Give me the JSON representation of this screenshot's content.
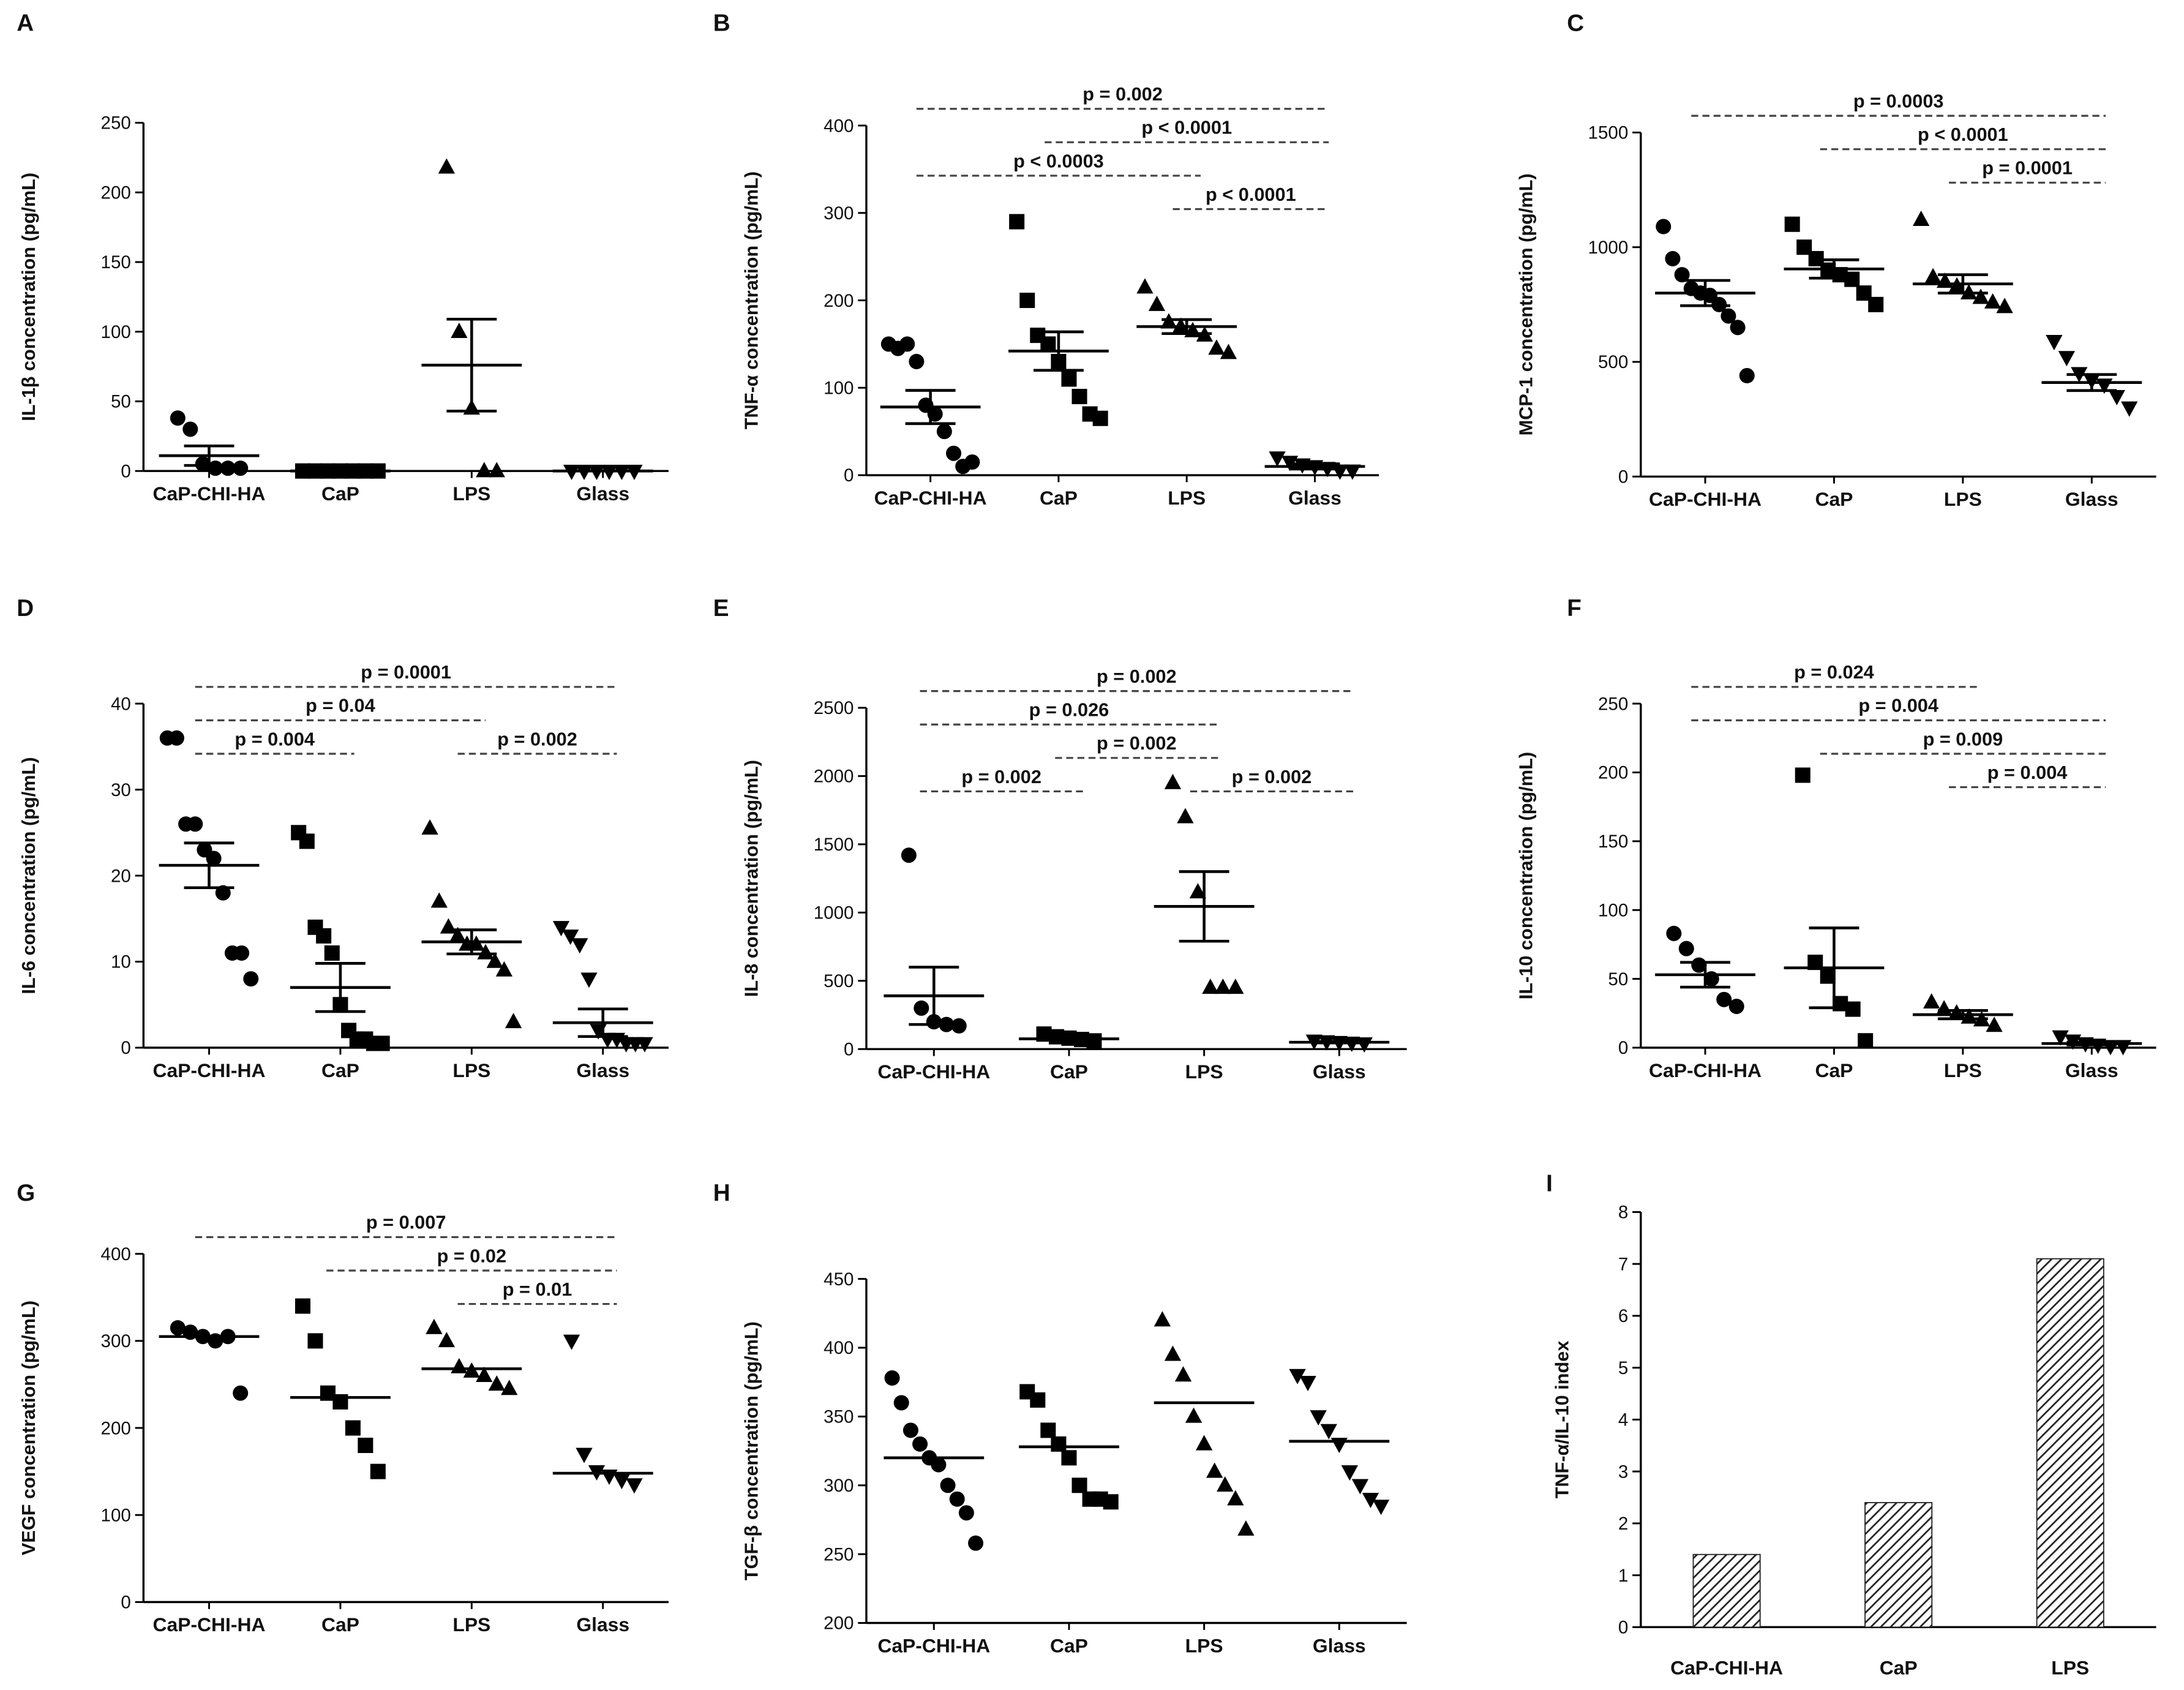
{
  "chart_data": [
    {
      "type": "strip",
      "panel": "A",
      "ylabel": "IL-1β concentration (pg/mL)",
      "categories": [
        "CaP-CHI-HA",
        "CaP",
        "LPS",
        "Glass"
      ],
      "ylim": [
        0,
        250
      ],
      "yticks": [
        0,
        50,
        100,
        150,
        200,
        250
      ],
      "groups": [
        {
          "points": [
            38,
            30,
            5,
            2,
            2,
            2
          ],
          "mean": 11,
          "sem": 7
        },
        {
          "points": [
            0,
            0,
            0,
            0,
            0,
            0,
            0
          ],
          "mean": 0,
          "sem": 0
        },
        {
          "points": [
            218,
            100,
            45,
            0,
            0
          ],
          "mean": 76,
          "sem": 33
        },
        {
          "points": [
            0,
            0,
            0,
            0,
            0,
            0
          ],
          "mean": 0,
          "sem": 0
        }
      ],
      "annotations": []
    },
    {
      "type": "strip",
      "panel": "B",
      "ylabel": "TNF-α concentration (pg/mL)",
      "categories": [
        "CaP-CHI-HA",
        "CaP",
        "LPS",
        "Glass"
      ],
      "ylim": [
        0,
        400
      ],
      "yticks": [
        0,
        100,
        200,
        300,
        400
      ],
      "groups": [
        {
          "points": [
            150,
            145,
            150,
            130,
            80,
            70,
            50,
            25,
            10,
            15
          ],
          "mean": 78,
          "sem": 19
        },
        {
          "points": [
            290,
            200,
            160,
            150,
            130,
            110,
            90,
            70,
            65
          ],
          "mean": 142,
          "sem": 22
        },
        {
          "points": [
            215,
            195,
            175,
            170,
            165,
            160,
            145,
            140
          ],
          "mean": 170,
          "sem": 8
        },
        {
          "points": [
            20,
            15,
            12,
            10,
            8,
            5,
            5
          ],
          "mean": 10,
          "sem": 3
        }
      ],
      "annotations": [
        {
          "text": "p = 0.002",
          "between": [
            0,
            3
          ]
        },
        {
          "text": "p < 0.0001",
          "between": [
            1,
            3
          ]
        },
        {
          "text": "p < 0.0003",
          "between": [
            0,
            2
          ]
        },
        {
          "text": "p < 0.0001",
          "between": [
            2,
            3
          ]
        }
      ]
    },
    {
      "type": "strip",
      "panel": "C",
      "ylabel": "MCP-1 concentration (pg/mL)",
      "categories": [
        "CaP-CHI-HA",
        "CaP",
        "LPS",
        "Glass"
      ],
      "ylim": [
        0,
        1500
      ],
      "yticks": [
        0,
        500,
        1000,
        1500
      ],
      "groups": [
        {
          "points": [
            1090,
            950,
            880,
            820,
            800,
            790,
            750,
            700,
            650,
            440
          ],
          "mean": 800,
          "sem": 55
        },
        {
          "points": [
            1100,
            1000,
            950,
            900,
            880,
            860,
            800,
            750
          ],
          "mean": 905,
          "sem": 40
        },
        {
          "points": [
            1120,
            870,
            850,
            830,
            800,
            780,
            760,
            740
          ],
          "mean": 840,
          "sem": 40
        },
        {
          "points": [
            590,
            520,
            450,
            420,
            400,
            350,
            300
          ],
          "mean": 410,
          "sem": 35
        }
      ],
      "annotations": [
        {
          "text": "p = 0.0003",
          "between": [
            0,
            3
          ]
        },
        {
          "text": "p < 0.0001",
          "between": [
            1,
            3
          ]
        },
        {
          "text": "p = 0.0001",
          "between": [
            2,
            3
          ]
        }
      ]
    },
    {
      "type": "strip",
      "panel": "D",
      "ylabel": "IL-6 concentration (pg/mL)",
      "categories": [
        "CaP-CHI-HA",
        "CaP",
        "LPS",
        "Glass"
      ],
      "ylim": [
        0,
        40
      ],
      "yticks": [
        0,
        10,
        20,
        30,
        40
      ],
      "groups": [
        {
          "points": [
            36,
            36,
            26,
            26,
            23,
            22,
            18,
            11,
            11,
            8
          ],
          "mean": 21.2,
          "sem": 2.6
        },
        {
          "points": [
            25,
            24,
            14,
            13,
            11,
            5,
            2,
            1,
            1,
            0.5,
            0.5
          ],
          "mean": 7,
          "sem": 2.8
        },
        {
          "points": [
            25.5,
            17,
            14,
            13,
            12,
            12,
            11,
            10,
            9,
            3
          ],
          "mean": 12.3,
          "sem": 1.4
        },
        {
          "points": [
            14,
            13,
            12,
            8,
            2,
            1,
            1,
            0.5,
            0.5,
            0.5
          ],
          "mean": 2.9,
          "sem": 1.6
        }
      ],
      "annotations": [
        {
          "text": "p = 0.0001",
          "between": [
            0,
            3
          ]
        },
        {
          "text": "p = 0.04",
          "between": [
            0,
            2
          ]
        },
        {
          "text": "p = 0.004",
          "between": [
            0,
            1
          ]
        },
        {
          "text": "p = 0.002",
          "between": [
            2,
            3
          ]
        }
      ]
    },
    {
      "type": "strip",
      "panel": "E",
      "ylabel": "IL-8 concentration (pg/mL)",
      "categories": [
        "CaP-CHI-HA",
        "CaP",
        "LPS",
        "Glass"
      ],
      "ylim": [
        0,
        2500
      ],
      "yticks": [
        0,
        500,
        1000,
        1500,
        2000,
        2500
      ],
      "groups": [
        {
          "points": [
            1420,
            300,
            200,
            180,
            170
          ],
          "mean": 390,
          "sem": 210
        },
        {
          "points": [
            110,
            90,
            80,
            70,
            60
          ],
          "mean": 75,
          "sem": 10
        },
        {
          "points": [
            1950,
            1700,
            1150,
            450,
            450,
            450
          ],
          "mean": 1045,
          "sem": 255
        },
        {
          "points": [
            60,
            55,
            50,
            45,
            40
          ],
          "mean": 50,
          "sem": 5
        }
      ],
      "annotations": [
        {
          "text": "p = 0.002",
          "between": [
            0,
            3
          ]
        },
        {
          "text": "p = 0.026",
          "between": [
            0,
            2
          ]
        },
        {
          "text": "p = 0.002",
          "between": [
            2,
            3
          ]
        },
        {
          "text": "p = 0.002",
          "between": [
            1,
            2
          ]
        },
        {
          "text": "p = 0.002",
          "between": [
            0,
            1
          ]
        }
      ]
    },
    {
      "type": "strip",
      "panel": "F",
      "ylabel": "IL-10 concentration (pg/mL)",
      "categories": [
        "CaP-CHI-HA",
        "CaP",
        "LPS",
        "Glass"
      ],
      "ylim": [
        0,
        250
      ],
      "yticks": [
        0,
        50,
        100,
        150,
        200,
        250
      ],
      "groups": [
        {
          "points": [
            83,
            72,
            60,
            50,
            35,
            30
          ],
          "mean": 53,
          "sem": 9
        },
        {
          "points": [
            198,
            62,
            52,
            32,
            28,
            5
          ],
          "mean": 58,
          "sem": 29
        },
        {
          "points": [
            33,
            28,
            25,
            22,
            20,
            16
          ],
          "mean": 24,
          "sem": 3
        },
        {
          "points": [
            8,
            5,
            3,
            2,
            1,
            1
          ],
          "mean": 3,
          "sem": 1
        }
      ],
      "annotations": [
        {
          "text": "p = 0.024",
          "between": [
            0,
            2
          ]
        },
        {
          "text": "p = 0.004",
          "between": [
            0,
            3
          ]
        },
        {
          "text": "p = 0.009",
          "between": [
            1,
            3
          ]
        },
        {
          "text": "p = 0.004",
          "between": [
            2,
            3
          ]
        }
      ]
    },
    {
      "type": "strip",
      "panel": "G",
      "ylabel": "VEGF concentration (pg/mL)",
      "categories": [
        "CaP-CHI-HA",
        "CaP",
        "LPS",
        "Glass"
      ],
      "ylim": [
        0,
        400
      ],
      "yticks": [
        0,
        100,
        200,
        300,
        400
      ],
      "groups": [
        {
          "points": [
            315,
            310,
            305,
            300,
            305,
            240
          ],
          "mean": 305
        },
        {
          "points": [
            340,
            300,
            240,
            230,
            200,
            180,
            150
          ],
          "mean": 235
        },
        {
          "points": [
            315,
            300,
            270,
            265,
            260,
            250,
            245
          ],
          "mean": 268
        },
        {
          "points": [
            300,
            170,
            150,
            145,
            140,
            135
          ],
          "mean": 148
        }
      ],
      "annotations": [
        {
          "text": "p = 0.007",
          "between": [
            0,
            3
          ]
        },
        {
          "text": "p = 0.02",
          "between": [
            1,
            3
          ]
        },
        {
          "text": "p = 0.01",
          "between": [
            2,
            3
          ]
        }
      ]
    },
    {
      "type": "strip",
      "panel": "H",
      "ylabel": "TGF-β concentration (pg/mL)",
      "categories": [
        "CaP-CHI-HA",
        "CaP",
        "LPS",
        "Glass"
      ],
      "ylim": [
        200,
        450
      ],
      "yticks": [
        200,
        250,
        300,
        350,
        400,
        450
      ],
      "groups": [
        {
          "points": [
            378,
            360,
            340,
            330,
            320,
            315,
            300,
            290,
            280,
            258
          ],
          "mean": 320
        },
        {
          "points": [
            368,
            362,
            340,
            330,
            320,
            300,
            290,
            290,
            288
          ],
          "mean": 328
        },
        {
          "points": [
            420,
            395,
            380,
            350,
            330,
            310,
            300,
            290,
            268
          ],
          "mean": 360
        },
        {
          "points": [
            380,
            375,
            350,
            340,
            330,
            310,
            300,
            290,
            285
          ],
          "mean": 332
        }
      ],
      "annotations": []
    },
    {
      "type": "bar",
      "panel": "I",
      "ylabel": "TNF-α/IL-10 index",
      "categories": [
        "CaP-CHI-HA",
        "CaP",
        "LPS"
      ],
      "values": [
        1.4,
        2.4,
        7.1
      ],
      "ylim": [
        0,
        8
      ],
      "yticks": [
        0,
        1,
        2,
        3,
        4,
        5,
        6,
        7,
        8
      ]
    }
  ]
}
